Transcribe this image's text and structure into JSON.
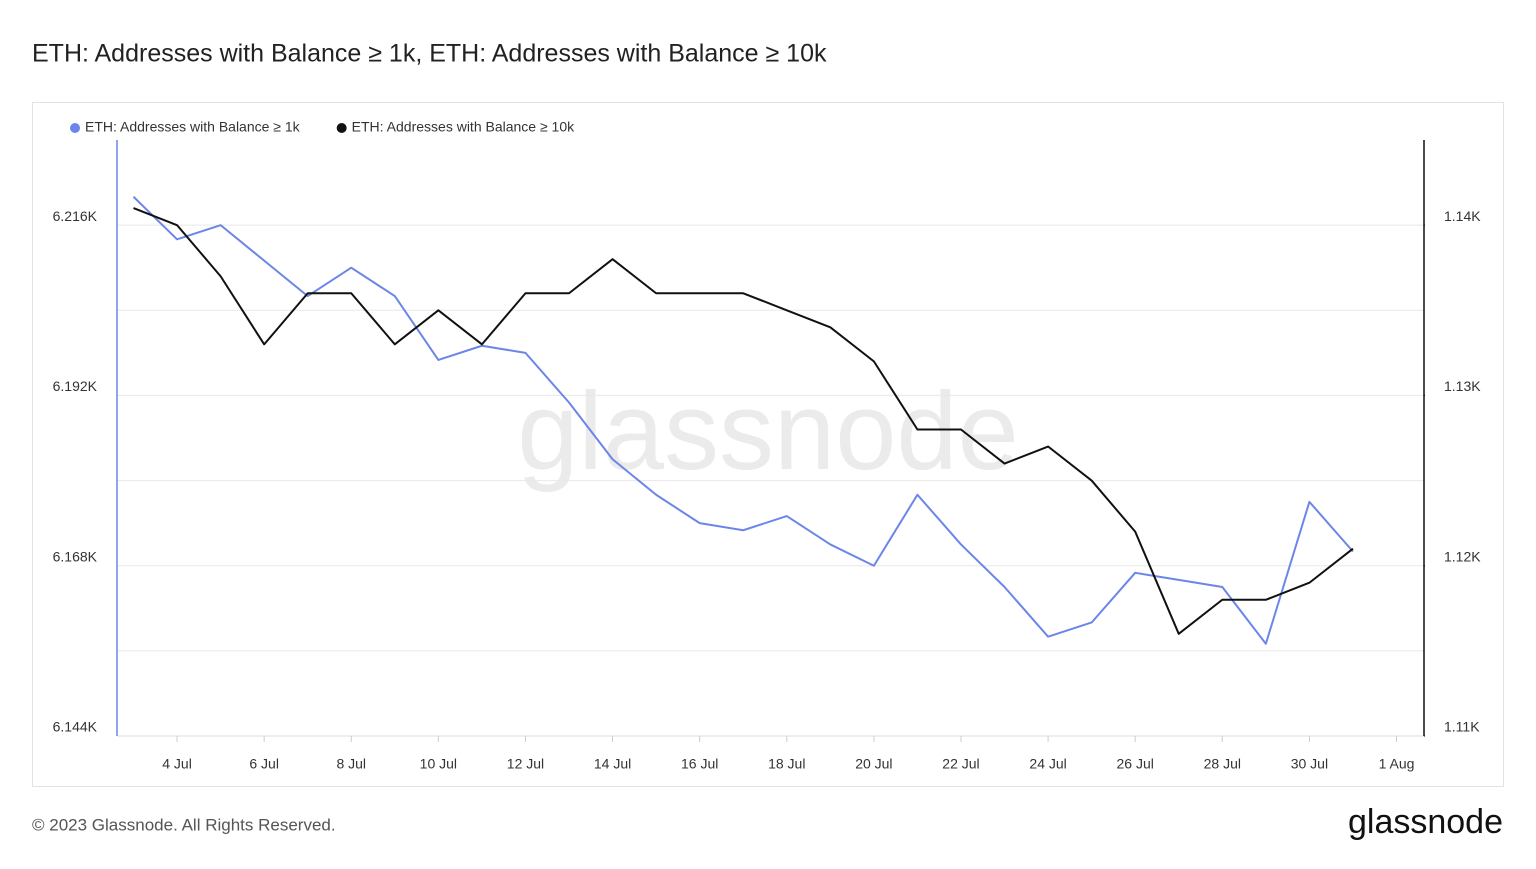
{
  "chart_data": {
    "type": "line",
    "title": "ETH: Addresses with Balance ≥ 1k, ETH: Addresses with Balance ≥ 10k",
    "watermark": "glassnode",
    "categories": [
      null,
      "4 Jul",
      null,
      "6 Jul",
      null,
      "8 Jul",
      null,
      "10 Jul",
      null,
      "12 Jul",
      null,
      "14 Jul",
      null,
      "16 Jul",
      null,
      "18 Jul",
      null,
      "20 Jul",
      null,
      "22 Jul",
      null,
      "24 Jul",
      null,
      "26 Jul",
      null,
      "28 Jul",
      null,
      "30 Jul",
      null,
      "1 Aug"
    ],
    "series": [
      {
        "name": "ETH: Addresses with Balance ≥ 1k",
        "color": "#6b86e8",
        "axis": "y",
        "values": [
          6220,
          6214,
          6216,
          6211,
          6206,
          6210,
          6206,
          6197,
          6199,
          6198,
          6191,
          6183,
          6178,
          6174,
          6173,
          6175,
          6171,
          6168,
          6178,
          6171,
          6165,
          6158,
          6160,
          6167,
          6166,
          6165,
          6157,
          6177,
          6170,
          null
        ]
      },
      {
        "name": "ETH: Addresses with Balance ≥ 10k",
        "color": "#111111",
        "axis": "y2",
        "values": [
          1141,
          1140,
          1137,
          1133,
          1136,
          1136,
          1133,
          1135,
          1133,
          1136,
          1136,
          1138,
          1136,
          1136,
          1136,
          1135,
          1134,
          1132,
          1128,
          1128,
          1126,
          1127,
          1125,
          1122,
          1116,
          1118,
          1118,
          1119,
          1121,
          null
        ]
      }
    ],
    "ylim": [
      6144,
      6228
    ],
    "yticks": [
      {
        "value": 6144,
        "label": "6.144K"
      },
      {
        "value": 6168,
        "label": "6.168K"
      },
      {
        "value": 6192,
        "label": "6.192K"
      },
      {
        "value": 6216,
        "label": "6.216K"
      }
    ],
    "minor_yticks": [
      6156,
      6180,
      6204
    ],
    "y2lim": [
      1110,
      1145
    ],
    "y2ticks": [
      {
        "value": 1110,
        "label": "1.11K"
      },
      {
        "value": 1120,
        "label": "1.12K"
      },
      {
        "value": 1130,
        "label": "1.13K"
      },
      {
        "value": 1140,
        "label": "1.14K"
      }
    ],
    "grid": true,
    "legend": "top-left"
  },
  "footer": {
    "copyright": "© 2023 Glassnode. All Rights Reserved.",
    "logo": "glassnode"
  }
}
